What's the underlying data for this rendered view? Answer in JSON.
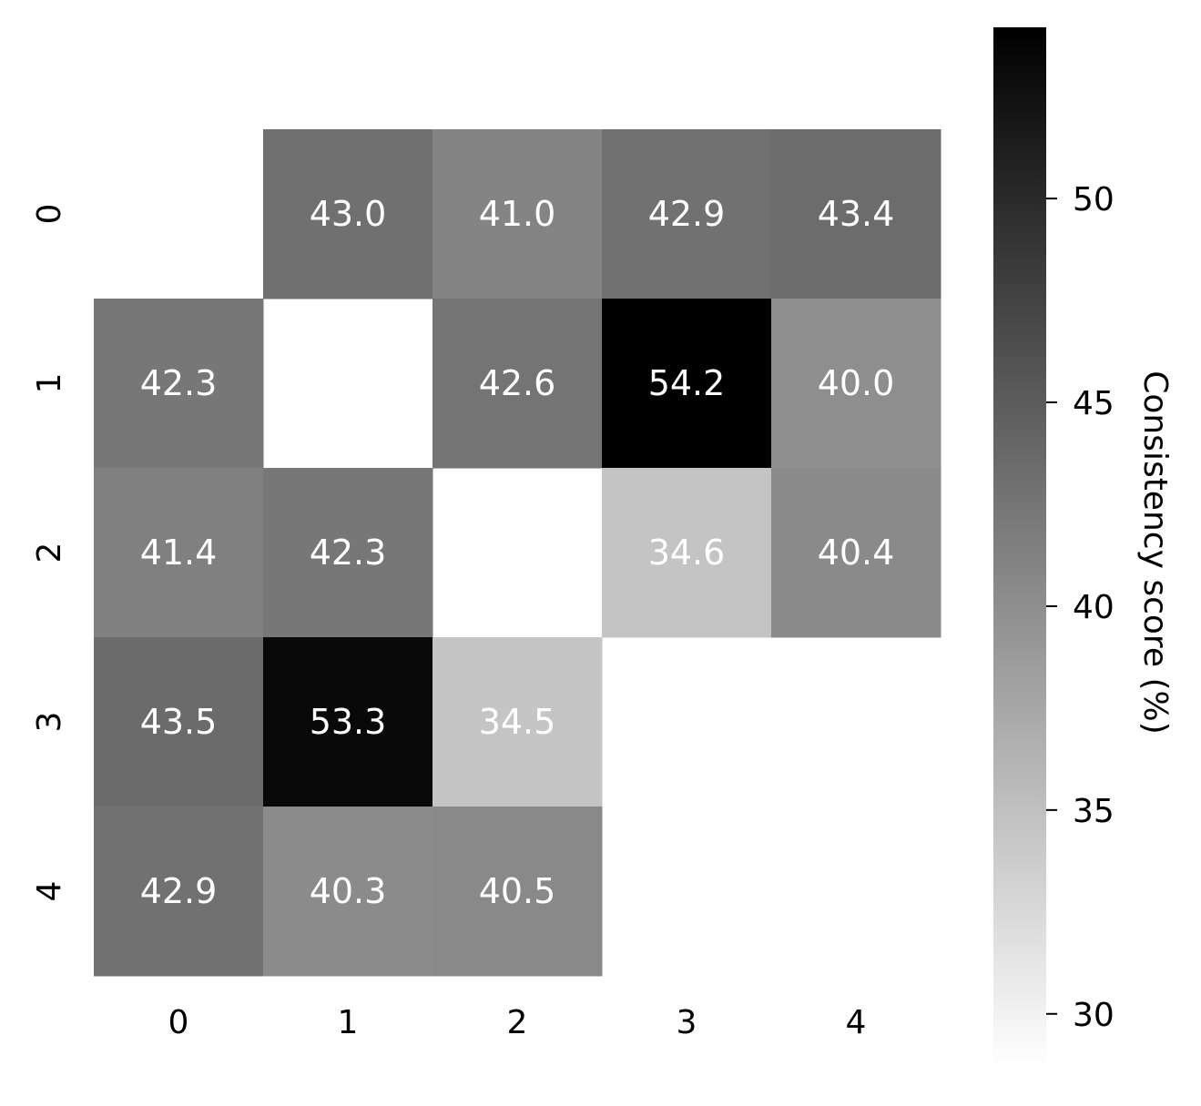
{
  "chart_data": {
    "type": "heatmap",
    "title": "",
    "xlabel": "",
    "ylabel": "",
    "x_tick_labels": [
      "0",
      "1",
      "2",
      "3",
      "4"
    ],
    "y_tick_labels": [
      "0",
      "1",
      "2",
      "3",
      "4"
    ],
    "values": [
      [
        null,
        43.0,
        41.0,
        42.9,
        43.4
      ],
      [
        42.3,
        null,
        42.6,
        54.2,
        40.0
      ],
      [
        41.4,
        42.3,
        null,
        34.6,
        40.4
      ],
      [
        43.5,
        53.3,
        34.5,
        null,
        null
      ],
      [
        42.9,
        40.3,
        40.5,
        null,
        null
      ]
    ],
    "cell_labels": [
      [
        "",
        "43.0",
        "41.0",
        "42.9",
        "43.4"
      ],
      [
        "42.3",
        "",
        "42.6",
        "54.2",
        "40.0"
      ],
      [
        "41.4",
        "42.3",
        "",
        "34.6",
        "40.4"
      ],
      [
        "43.5",
        "53.3",
        "34.5",
        "",
        ""
      ],
      [
        "42.9",
        "40.3",
        "40.5",
        "",
        ""
      ]
    ],
    "colormap": "Greys",
    "colorbar": {
      "label": "Consistency score (%)",
      "range": [
        28.7,
        54.2
      ],
      "ticks": [
        30,
        35,
        40,
        45,
        50
      ],
      "tick_labels": [
        "30",
        "35",
        "40",
        "45",
        "50"
      ]
    },
    "colors": {
      "low": "#ffffff",
      "high": "#000000",
      "annotation_text": "#ffffff"
    }
  }
}
